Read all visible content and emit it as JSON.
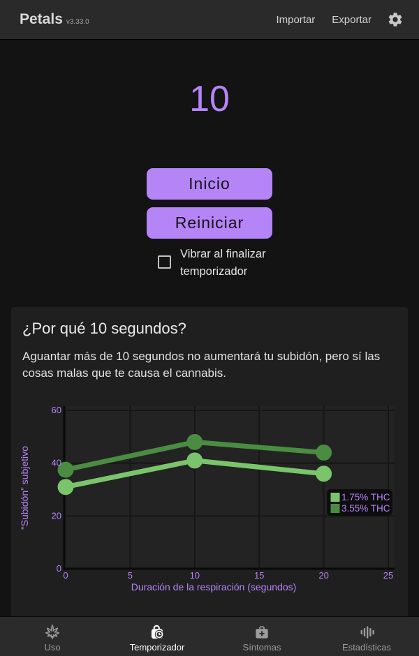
{
  "header": {
    "app_title": "Petals",
    "app_version": "v3.33.0",
    "import_label": "Importar",
    "export_label": "Exportar"
  },
  "timer": {
    "display_value": "10",
    "start_button": "Inicio",
    "reset_button": "Reiniciar",
    "vibrate_checkbox_label": "Vibrar al finalizar temporizador",
    "vibrate_checked": false
  },
  "info_card": {
    "title": "¿Por qué 10 segundos?",
    "body": "Aguantar más de 10 segundos no aumentará tu subidón, pero sí las cosas malas que te causa el cannabis."
  },
  "chart_data": {
    "type": "line",
    "x": [
      0,
      10,
      20
    ],
    "series": [
      {
        "name": "1.75% THC",
        "color": "#7ac56b",
        "values": [
          31,
          41,
          36
        ]
      },
      {
        "name": "3.55% THC",
        "color": "#4a8c41",
        "values": [
          37.5,
          48,
          44
        ]
      }
    ],
    "xlabel": "Duración de la respiración (segundos)",
    "ylabel": "“Subidón” subjetivo",
    "xlim": [
      0,
      25
    ],
    "ylim": [
      0,
      60
    ],
    "xticks": [
      0,
      5,
      10,
      15,
      20,
      25
    ],
    "yticks": [
      0,
      20,
      40,
      60
    ],
    "grid": true,
    "legend_position": "right-middle",
    "axis_color": "#b584f7",
    "plot_bg": "#232323",
    "grid_color": "#161616",
    "axis_line_color": "#0a0a0a",
    "legend_bg": "#0d0d0d"
  },
  "nav": {
    "items": [
      {
        "label": "Uso",
        "icon": "cannabis-leaf-icon",
        "active": false
      },
      {
        "label": "Temporizador",
        "icon": "timer-icon",
        "active": true
      },
      {
        "label": "Síntomas",
        "icon": "first-aid-kit-icon",
        "active": false
      },
      {
        "label": "Estadísticas",
        "icon": "equalizer-icon",
        "active": false
      }
    ]
  },
  "colors": {
    "accent_purple": "#b584f7",
    "header_bg": "#2a2a2a",
    "page_bg": "#131313",
    "card_bg": "#1f1f1f"
  }
}
